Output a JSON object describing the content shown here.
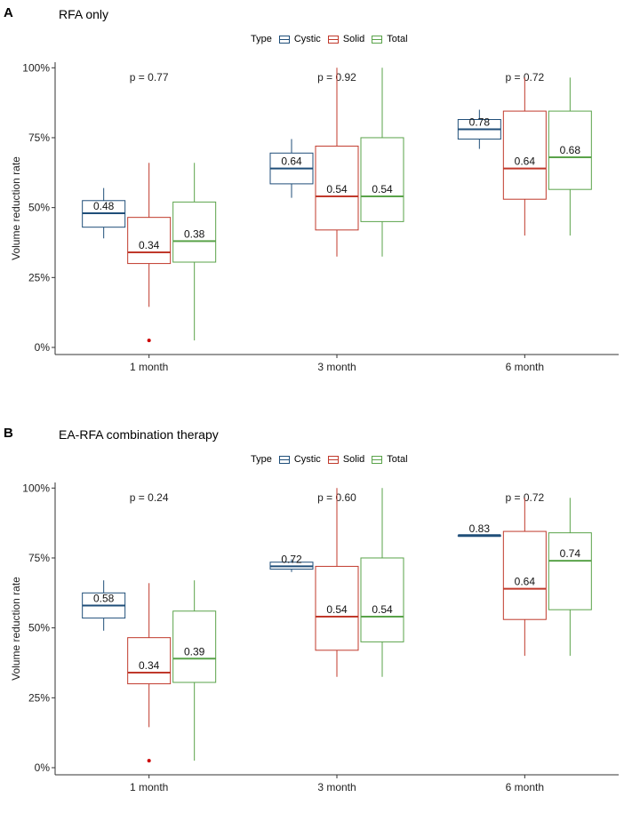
{
  "colors": {
    "cystic": "#1f4e79",
    "solid": "#c0392b",
    "total": "#5aa34a",
    "outlier": "#cc0000",
    "axis": "#333333"
  },
  "legend": {
    "title": "Type",
    "items": [
      "Cystic",
      "Solid",
      "Total"
    ]
  },
  "chart_data": [
    {
      "type": "box",
      "panel": "A",
      "title": "RFA only",
      "xlabel": "",
      "ylabel": "Volume reduction rate",
      "ylim": [
        0,
        1.02
      ],
      "yticks": [
        0,
        0.25,
        0.5,
        0.75,
        1.0
      ],
      "ytick_labels": [
        "0%",
        "25%",
        "50%",
        "75%",
        "100%"
      ],
      "categories": [
        "1 month",
        "3 month",
        "6 month"
      ],
      "pvalues": [
        "p = 0.77",
        "p = 0.92",
        "p = 0.72"
      ],
      "series": [
        {
          "name": "Cystic",
          "key": "cystic",
          "boxes": [
            {
              "min": 0.39,
              "q1": 0.43,
              "median": 0.48,
              "q3": 0.525,
              "max": 0.57,
              "label": "0.48"
            },
            {
              "min": 0.535,
              "q1": 0.585,
              "median": 0.64,
              "q3": 0.695,
              "max": 0.745,
              "label": "0.64"
            },
            {
              "min": 0.71,
              "q1": 0.745,
              "median": 0.78,
              "q3": 0.815,
              "max": 0.85,
              "label": "0.78"
            }
          ]
        },
        {
          "name": "Solid",
          "key": "solid",
          "boxes": [
            {
              "min": 0.145,
              "q1": 0.3,
              "median": 0.34,
              "q3": 0.465,
              "max": 0.66,
              "label": "0.34",
              "outliers": [
                0.025
              ]
            },
            {
              "min": 0.325,
              "q1": 0.42,
              "median": 0.54,
              "q3": 0.72,
              "max": 1.0,
              "label": "0.54"
            },
            {
              "min": 0.4,
              "q1": 0.53,
              "median": 0.64,
              "q3": 0.845,
              "max": 0.965,
              "label": "0.64"
            }
          ]
        },
        {
          "name": "Total",
          "key": "total",
          "boxes": [
            {
              "min": 0.025,
              "q1": 0.305,
              "median": 0.38,
              "q3": 0.52,
              "max": 0.66,
              "label": "0.38"
            },
            {
              "min": 0.325,
              "q1": 0.45,
              "median": 0.54,
              "q3": 0.75,
              "max": 1.0,
              "label": "0.54"
            },
            {
              "min": 0.4,
              "q1": 0.565,
              "median": 0.68,
              "q3": 0.845,
              "max": 0.965,
              "label": "0.68"
            }
          ]
        }
      ]
    },
    {
      "type": "box",
      "panel": "B",
      "title": "EA-RFA combination therapy",
      "xlabel": "",
      "ylabel": "Volume reduction rate",
      "ylim": [
        0,
        1.02
      ],
      "yticks": [
        0,
        0.25,
        0.5,
        0.75,
        1.0
      ],
      "ytick_labels": [
        "0%",
        "25%",
        "50%",
        "75%",
        "100%"
      ],
      "categories": [
        "1 month",
        "3 month",
        "6 month"
      ],
      "pvalues": [
        "p = 0.24",
        "p = 0.60",
        "p = 0.72"
      ],
      "series": [
        {
          "name": "Cystic",
          "key": "cystic",
          "boxes": [
            {
              "min": 0.49,
              "q1": 0.535,
              "median": 0.58,
              "q3": 0.625,
              "max": 0.67,
              "label": "0.58"
            },
            {
              "min": 0.7,
              "q1": 0.71,
              "median": 0.72,
              "q3": 0.735,
              "max": 0.745,
              "label": "0.72"
            },
            {
              "min": 0.83,
              "q1": 0.83,
              "median": 0.83,
              "q3": 0.83,
              "max": 0.83,
              "label": "0.83"
            }
          ]
        },
        {
          "name": "Solid",
          "key": "solid",
          "boxes": [
            {
              "min": 0.145,
              "q1": 0.3,
              "median": 0.34,
              "q3": 0.465,
              "max": 0.66,
              "label": "0.34",
              "outliers": [
                0.025
              ]
            },
            {
              "min": 0.325,
              "q1": 0.42,
              "median": 0.54,
              "q3": 0.72,
              "max": 1.0,
              "label": "0.54"
            },
            {
              "min": 0.4,
              "q1": 0.53,
              "median": 0.64,
              "q3": 0.845,
              "max": 0.965,
              "label": "0.64"
            }
          ]
        },
        {
          "name": "Total",
          "key": "total",
          "boxes": [
            {
              "min": 0.025,
              "q1": 0.305,
              "median": 0.39,
              "q3": 0.56,
              "max": 0.67,
              "label": "0.39"
            },
            {
              "min": 0.325,
              "q1": 0.45,
              "median": 0.54,
              "q3": 0.75,
              "max": 1.0,
              "label": "0.54"
            },
            {
              "min": 0.4,
              "q1": 0.565,
              "median": 0.74,
              "q3": 0.84,
              "max": 0.965,
              "label": "0.74"
            }
          ]
        }
      ]
    }
  ]
}
